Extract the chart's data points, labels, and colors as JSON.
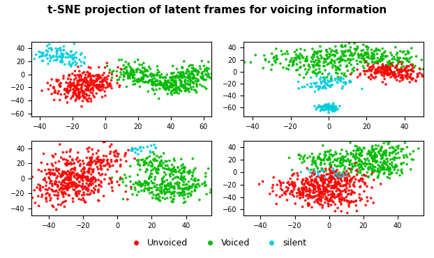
{
  "title": "t-SNE projection of latent frames for voicing information",
  "title_fontsize": 11,
  "colors": {
    "unvoiced": "#FF0000",
    "voiced": "#00BB00",
    "silent": "#00CCDD"
  },
  "legend_labels": [
    "Unvoiced",
    "Voiced",
    "silent"
  ],
  "marker_size": 7,
  "seed": 123
}
